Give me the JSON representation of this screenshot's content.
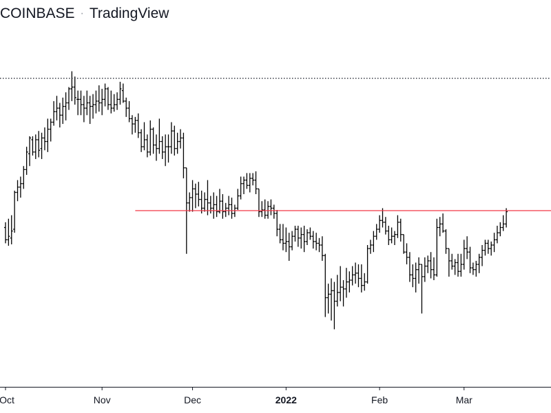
{
  "header": {
    "exchange": "COINBASE",
    "separator": "·",
    "brand": "TradingView"
  },
  "colors": {
    "bars": "#000000",
    "support_line": "#f23645",
    "high_line": "#131722",
    "axis": "#131722"
  },
  "chart_data": {
    "type": "ohlc",
    "title": "",
    "xlabel": "",
    "ylabel": "",
    "x_ticks": [
      {
        "label": "Oct",
        "index": 0
      },
      {
        "label": "Nov",
        "index": 32
      },
      {
        "label": "Dec",
        "index": 62
      },
      {
        "label": "2022",
        "index": 93,
        "bold": true
      },
      {
        "label": "Feb",
        "index": 124
      },
      {
        "label": "Mar",
        "index": 152
      }
    ],
    "ylim": [
      0,
      100
    ],
    "grid": false,
    "y_axis_visible": false,
    "reference_lines": [
      {
        "style": "dotted",
        "value": 87.5,
        "from_index": 0
      },
      {
        "style": "solid-red",
        "value": 49.8,
        "from_index": 43
      }
    ],
    "series": [
      {
        "values": [
          [
            45.0,
            46.5,
            40.5,
            41.5
          ],
          [
            41.5,
            47.5,
            39.8,
            42.5
          ],
          [
            42.0,
            48.5,
            40.2,
            44.0
          ],
          [
            44.5,
            55.5,
            43.5,
            55.0
          ],
          [
            55.0,
            58.5,
            52.5,
            56.5
          ],
          [
            56.5,
            59.5,
            53.5,
            57.5
          ],
          [
            57.5,
            62.5,
            56.0,
            61.5
          ],
          [
            61.5,
            68.0,
            60.0,
            66.5
          ],
          [
            66.0,
            71.0,
            62.5,
            70.5
          ],
          [
            70.0,
            71.0,
            65.5,
            66.5
          ],
          [
            66.5,
            71.5,
            64.5,
            70.0
          ],
          [
            70.0,
            72.5,
            65.0,
            67.0
          ],
          [
            67.5,
            72.0,
            64.5,
            70.5
          ],
          [
            70.5,
            73.5,
            67.0,
            69.5
          ],
          [
            69.5,
            76.0,
            66.5,
            73.0
          ],
          [
            73.0,
            76.0,
            69.5,
            75.0
          ],
          [
            75.0,
            81.0,
            74.0,
            78.0
          ],
          [
            78.0,
            82.5,
            75.5,
            79.0
          ],
          [
            79.0,
            80.5,
            73.5,
            77.0
          ],
          [
            77.0,
            82.0,
            74.5,
            79.5
          ],
          [
            79.5,
            83.5,
            75.5,
            80.5
          ],
          [
            80.5,
            85.0,
            78.5,
            84.5
          ],
          [
            84.5,
            89.5,
            81.0,
            85.0
          ],
          [
            85.0,
            88.0,
            80.0,
            82.0
          ],
          [
            81.5,
            84.0,
            77.0,
            81.5
          ],
          [
            81.5,
            84.0,
            77.0,
            80.0
          ],
          [
            80.0,
            82.5,
            75.0,
            79.0
          ],
          [
            79.0,
            84.0,
            77.0,
            80.5
          ],
          [
            80.5,
            82.5,
            74.5,
            79.5
          ],
          [
            79.5,
            83.0,
            76.0,
            80.0
          ],
          [
            80.0,
            84.0,
            77.5,
            81.0
          ],
          [
            81.0,
            85.5,
            78.0,
            80.5
          ],
          [
            80.5,
            84.5,
            77.0,
            81.5
          ],
          [
            81.5,
            86.0,
            79.5,
            84.5
          ],
          [
            84.5,
            85.0,
            78.5,
            80.0
          ],
          [
            80.0,
            84.0,
            77.5,
            79.0
          ],
          [
            79.0,
            83.0,
            78.0,
            80.0
          ],
          [
            80.0,
            83.5,
            78.5,
            81.5
          ],
          [
            81.5,
            86.5,
            80.0,
            84.5
          ],
          [
            84.0,
            86.0,
            80.5,
            81.0
          ],
          [
            81.0,
            82.0,
            76.5,
            79.0
          ],
          [
            79.0,
            81.0,
            75.0,
            76.0
          ],
          [
            76.0,
            77.0,
            71.5,
            74.5
          ],
          [
            74.5,
            76.5,
            72.0,
            75.5
          ],
          [
            75.5,
            77.5,
            70.5,
            72.0
          ],
          [
            72.0,
            73.0,
            66.5,
            68.0
          ],
          [
            68.0,
            75.0,
            67.0,
            70.0
          ],
          [
            70.0,
            71.5,
            65.0,
            66.5
          ],
          [
            66.5,
            75.5,
            65.5,
            73.0
          ],
          [
            73.0,
            73.5,
            66.0,
            68.5
          ],
          [
            68.5,
            71.5,
            64.0,
            67.5
          ],
          [
            67.5,
            76.0,
            66.0,
            69.5
          ],
          [
            69.5,
            71.0,
            64.5,
            66.5
          ],
          [
            66.5,
            71.5,
            62.5,
            68.0
          ],
          [
            68.0,
            71.5,
            63.5,
            68.0
          ],
          [
            68.0,
            75.0,
            66.0,
            72.5
          ],
          [
            72.5,
            74.0,
            65.5,
            67.5
          ],
          [
            67.5,
            72.0,
            66.0,
            69.5
          ],
          [
            69.5,
            73.0,
            67.5,
            70.5
          ],
          [
            70.5,
            72.0,
            59.0,
            62.0
          ],
          [
            62.0,
            57.5,
            37.5,
            52.0
          ],
          [
            52.0,
            55.0,
            49.5,
            53.5
          ],
          [
            53.5,
            58.5,
            49.5,
            56.0
          ],
          [
            56.0,
            57.5,
            50.5,
            54.5
          ],
          [
            54.5,
            58.0,
            51.0,
            53.0
          ],
          [
            53.0,
            55.5,
            49.0,
            50.5
          ],
          [
            50.5,
            55.0,
            49.5,
            53.0
          ],
          [
            53.0,
            58.5,
            48.5,
            52.0
          ],
          [
            52.0,
            54.0,
            49.0,
            50.5
          ],
          [
            50.5,
            55.0,
            47.5,
            51.5
          ],
          [
            51.5,
            54.0,
            48.0,
            49.5
          ],
          [
            49.5,
            56.0,
            49.0,
            52.5
          ],
          [
            52.5,
            54.5,
            47.5,
            49.5
          ],
          [
            49.5,
            52.0,
            48.0,
            50.5
          ],
          [
            50.5,
            54.0,
            48.5,
            51.5
          ],
          [
            51.5,
            53.5,
            47.5,
            49.0
          ],
          [
            49.0,
            51.5,
            48.0,
            50.5
          ],
          [
            50.5,
            56.0,
            50.0,
            54.0
          ],
          [
            54.0,
            59.5,
            53.0,
            57.5
          ],
          [
            57.5,
            59.5,
            54.5,
            58.5
          ],
          [
            58.5,
            60.5,
            56.0,
            57.0
          ],
          [
            57.0,
            60.5,
            55.0,
            59.0
          ],
          [
            59.0,
            60.5,
            57.0,
            58.5
          ],
          [
            58.5,
            61.0,
            54.5,
            56.0
          ],
          [
            56.0,
            55.0,
            48.0,
            49.5
          ],
          [
            49.5,
            52.5,
            48.0,
            50.0
          ],
          [
            50.0,
            53.0,
            47.5,
            48.5
          ],
          [
            48.5,
            52.5,
            47.5,
            51.0
          ],
          [
            51.0,
            53.0,
            48.5,
            50.5
          ],
          [
            50.5,
            51.5,
            47.5,
            49.0
          ],
          [
            49.0,
            50.0,
            42.5,
            44.5
          ],
          [
            44.5,
            46.0,
            40.5,
            41.5
          ],
          [
            41.5,
            46.0,
            38.5,
            40.5
          ],
          [
            40.5,
            45.0,
            38.0,
            41.0
          ],
          [
            41.0,
            43.5,
            35.5,
            39.5
          ],
          [
            39.5,
            44.0,
            38.5,
            42.5
          ],
          [
            42.5,
            45.5,
            41.0,
            44.5
          ],
          [
            44.5,
            45.5,
            39.5,
            42.0
          ],
          [
            42.0,
            45.0,
            39.0,
            43.0
          ],
          [
            43.0,
            45.5,
            38.0,
            41.0
          ],
          [
            41.0,
            44.5,
            40.0,
            43.5
          ],
          [
            43.5,
            45.0,
            41.5,
            42.5
          ],
          [
            42.5,
            44.0,
            39.0,
            41.0
          ],
          [
            41.0,
            43.5,
            38.5,
            40.5
          ],
          [
            40.5,
            42.0,
            38.0,
            40.0
          ],
          [
            40.0,
            42.5,
            35.5,
            37.0
          ],
          [
            37.0,
            37.5,
            19.5,
            25.0
          ],
          [
            25.0,
            29.0,
            20.5,
            26.0
          ],
          [
            26.0,
            30.5,
            18.5,
            27.0
          ],
          [
            27.0,
            29.5,
            16.0,
            24.0
          ],
          [
            24.0,
            31.5,
            22.5,
            26.5
          ],
          [
            26.5,
            34.0,
            24.0,
            28.0
          ],
          [
            28.0,
            30.0,
            22.5,
            27.5
          ],
          [
            27.5,
            33.5,
            25.0,
            29.5
          ],
          [
            29.5,
            32.5,
            26.5,
            30.0
          ],
          [
            30.0,
            34.0,
            28.5,
            31.5
          ],
          [
            31.5,
            35.0,
            29.0,
            32.0
          ],
          [
            32.0,
            34.5,
            28.0,
            30.5
          ],
          [
            30.5,
            34.5,
            26.5,
            28.5
          ],
          [
            28.5,
            32.0,
            27.0,
            29.5
          ],
          [
            29.5,
            40.0,
            29.0,
            39.0
          ],
          [
            39.0,
            41.5,
            37.5,
            40.0
          ],
          [
            40.0,
            44.0,
            38.0,
            42.5
          ],
          [
            42.5,
            46.0,
            41.5,
            44.5
          ],
          [
            44.5,
            48.5,
            43.5,
            47.0
          ],
          [
            47.0,
            50.5,
            45.0,
            46.5
          ],
          [
            46.5,
            48.0,
            43.0,
            44.0
          ],
          [
            44.0,
            45.5,
            40.0,
            41.5
          ],
          [
            41.5,
            45.0,
            40.5,
            42.5
          ],
          [
            42.5,
            44.0,
            40.0,
            43.0
          ],
          [
            43.0,
            48.5,
            42.0,
            46.5
          ],
          [
            46.5,
            47.5,
            41.0,
            43.0
          ],
          [
            43.0,
            41.5,
            37.5,
            38.0
          ],
          [
            38.0,
            40.5,
            34.5,
            36.5
          ],
          [
            36.5,
            38.0,
            29.5,
            31.5
          ],
          [
            31.5,
            34.5,
            28.0,
            30.5
          ],
          [
            30.5,
            35.0,
            26.5,
            33.0
          ],
          [
            33.0,
            36.5,
            29.0,
            34.5
          ],
          [
            34.5,
            31.5,
            20.5,
            31.0
          ],
          [
            31.0,
            36.5,
            29.5,
            34.0
          ],
          [
            34.0,
            37.0,
            32.0,
            35.5
          ],
          [
            35.5,
            38.0,
            30.5,
            33.0
          ],
          [
            33.0,
            36.5,
            30.0,
            31.5
          ],
          [
            31.5,
            47.5,
            31.0,
            45.0
          ],
          [
            45.0,
            48.0,
            42.5,
            46.0
          ],
          [
            46.0,
            49.0,
            43.5,
            44.0
          ],
          [
            44.0,
            44.5,
            37.5,
            39.0
          ],
          [
            39.0,
            37.0,
            31.0,
            35.5
          ],
          [
            35.5,
            37.5,
            33.0,
            34.0
          ],
          [
            34.0,
            36.0,
            31.5,
            35.0
          ],
          [
            35.0,
            37.5,
            31.0,
            32.5
          ],
          [
            32.5,
            37.5,
            31.0,
            34.5
          ],
          [
            34.5,
            41.5,
            33.0,
            39.0
          ],
          [
            39.0,
            42.5,
            36.0,
            38.0
          ],
          [
            38.0,
            39.5,
            32.0,
            33.5
          ],
          [
            33.5,
            35.0,
            31.5,
            33.0
          ],
          [
            33.0,
            35.5,
            31.0,
            34.5
          ],
          [
            34.5,
            37.5,
            32.0,
            36.5
          ],
          [
            36.5,
            40.0,
            34.0,
            38.5
          ],
          [
            38.5,
            41.5,
            37.0,
            40.5
          ],
          [
            40.5,
            41.5,
            37.5,
            39.0
          ],
          [
            39.0,
            41.0,
            37.0,
            40.0
          ],
          [
            40.0,
            43.5,
            38.0,
            41.5
          ],
          [
            41.5,
            45.5,
            40.5,
            43.5
          ],
          [
            43.5,
            46.5,
            42.5,
            45.0
          ],
          [
            45.0,
            48.5,
            44.0,
            46.0
          ],
          [
            46.0,
            50.5,
            45.0,
            49.5
          ]
        ]
      }
    ]
  }
}
